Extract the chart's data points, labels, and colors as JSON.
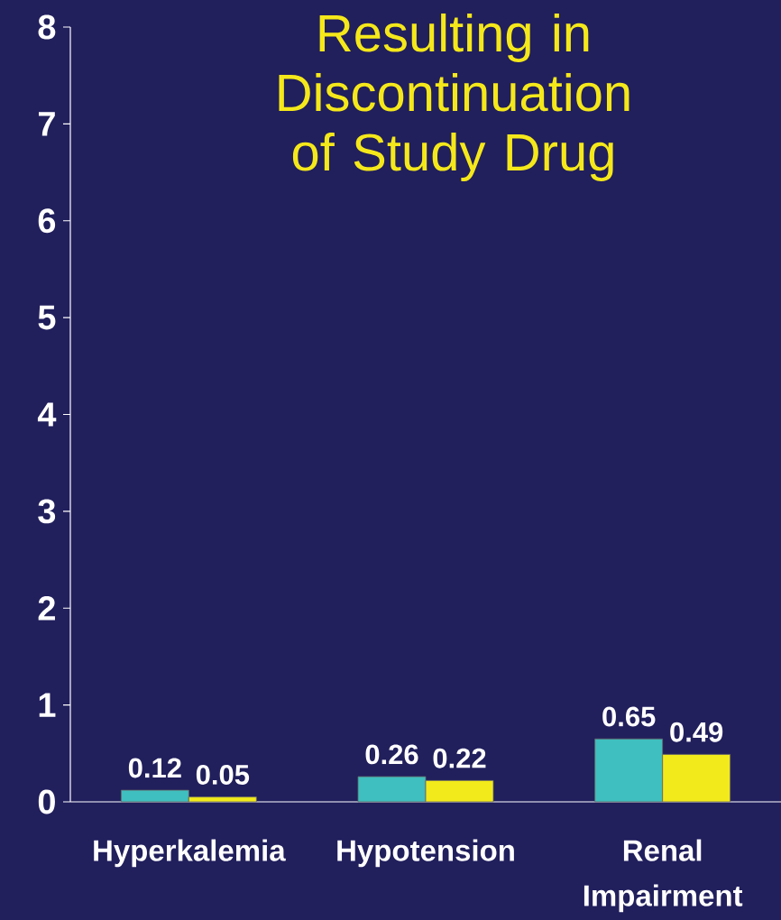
{
  "chart_data": {
    "type": "bar",
    "title": "Resulting in Discontinuation of Study Drug",
    "categories": [
      "Hyperkalemia",
      "Hypotension",
      "Renal Impairment"
    ],
    "series": [
      {
        "color": "#3fbfbf",
        "values": [
          0.12,
          0.26,
          0.65
        ]
      },
      {
        "color": "#f2ea1a",
        "values": [
          0.05,
          0.22,
          0.49
        ]
      }
    ],
    "ylim": [
      0,
      8
    ],
    "yticks": [
      0,
      1,
      2,
      3,
      4,
      5,
      6,
      7,
      8
    ],
    "data_labels": true
  }
}
